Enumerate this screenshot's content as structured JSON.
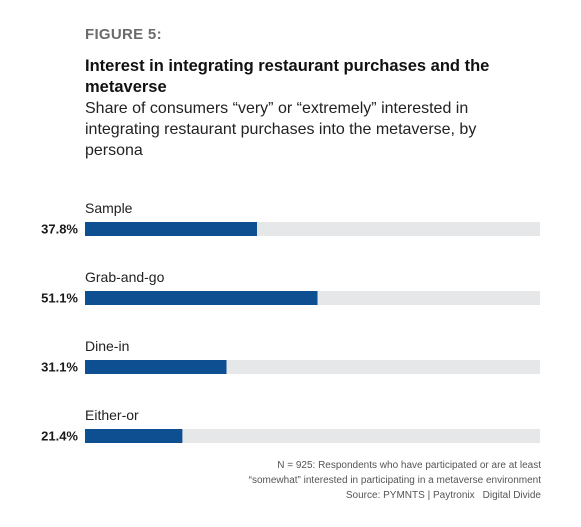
{
  "figure_label": "FIGURE 5:",
  "chart_data": {
    "type": "bar",
    "orientation": "horizontal",
    "title": "Interest in integrating restaurant purchases and the metaverse",
    "subtitle": "Share of consumers “very” or “extremely” interested in integrating restaurant purchases into the metaverse, by persona",
    "categories": [
      "Sample",
      "Grab-and-go",
      "Dine-in",
      "Either-or"
    ],
    "values": [
      37.8,
      51.1,
      31.1,
      21.4
    ],
    "value_labels": [
      "37.8%",
      "51.1%",
      "31.1%",
      "21.4%"
    ],
    "xlim": [
      0,
      100
    ],
    "grid": false,
    "legend": "none",
    "bar_color": "#0e4f91",
    "track_color": "#e6e7e9"
  },
  "notes": {
    "line1": "N = 925: Respondents who have participated or are at least",
    "line2": "“somewhat” interested in participating in a metaverse environment"
  },
  "source": {
    "text": "Source: PYMNTS | Paytronix",
    "report": "Digital Divide"
  }
}
